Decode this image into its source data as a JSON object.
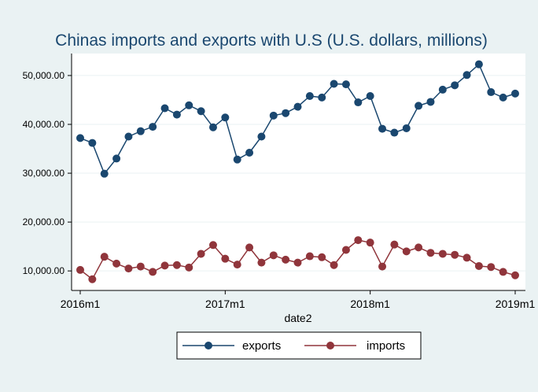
{
  "chart_data": {
    "type": "line",
    "title": "Chinas imports and exports with U.S (U.S. dollars, millions)",
    "xlabel": "date2",
    "ylabel": "",
    "x": [
      "2016m1",
      "2016m2",
      "2016m3",
      "2016m4",
      "2016m5",
      "2016m6",
      "2016m7",
      "2016m8",
      "2016m9",
      "2016m10",
      "2016m11",
      "2016m12",
      "2017m1",
      "2017m2",
      "2017m3",
      "2017m4",
      "2017m5",
      "2017m6",
      "2017m7",
      "2017m8",
      "2017m9",
      "2017m10",
      "2017m11",
      "2017m12",
      "2018m1",
      "2018m2",
      "2018m3",
      "2018m4",
      "2018m5",
      "2018m6",
      "2018m7",
      "2018m8",
      "2018m9",
      "2018m10",
      "2018m11",
      "2018m12",
      "2019m1"
    ],
    "x_ticks": [
      "2016m1",
      "2017m1",
      "2018m1",
      "2019m1"
    ],
    "y_ticks": [
      "10,000.00",
      "20,000.00",
      "30,000.00",
      "40,000.00",
      "50,000.00"
    ],
    "ylim": [
      6000,
      54500
    ],
    "grid": true,
    "legend_position": "bottom",
    "series": [
      {
        "name": "exports",
        "color": "#1a476f",
        "values": [
          37200,
          36200,
          29900,
          33000,
          37500,
          38600,
          39500,
          43300,
          42000,
          43900,
          42700,
          39400,
          41400,
          32800,
          34200,
          37500,
          41800,
          42300,
          43600,
          45800,
          45500,
          48300,
          48200,
          44500,
          45800,
          39100,
          38300,
          39200,
          43800,
          44600,
          47100,
          48000,
          50100,
          52300,
          46600,
          45500,
          46300
        ]
      },
      {
        "name": "imports",
        "color": "#90353b",
        "values": [
          10200,
          8300,
          12900,
          11500,
          10500,
          10900,
          9800,
          11100,
          11200,
          10700,
          13500,
          15300,
          12500,
          11300,
          14800,
          11700,
          13200,
          12300,
          11700,
          13000,
          12800,
          11200,
          14300,
          16300,
          15800,
          10900,
          15400,
          14000,
          14800,
          13700,
          13500,
          13300,
          12700,
          11000,
          10800,
          9800,
          9100
        ]
      }
    ]
  }
}
